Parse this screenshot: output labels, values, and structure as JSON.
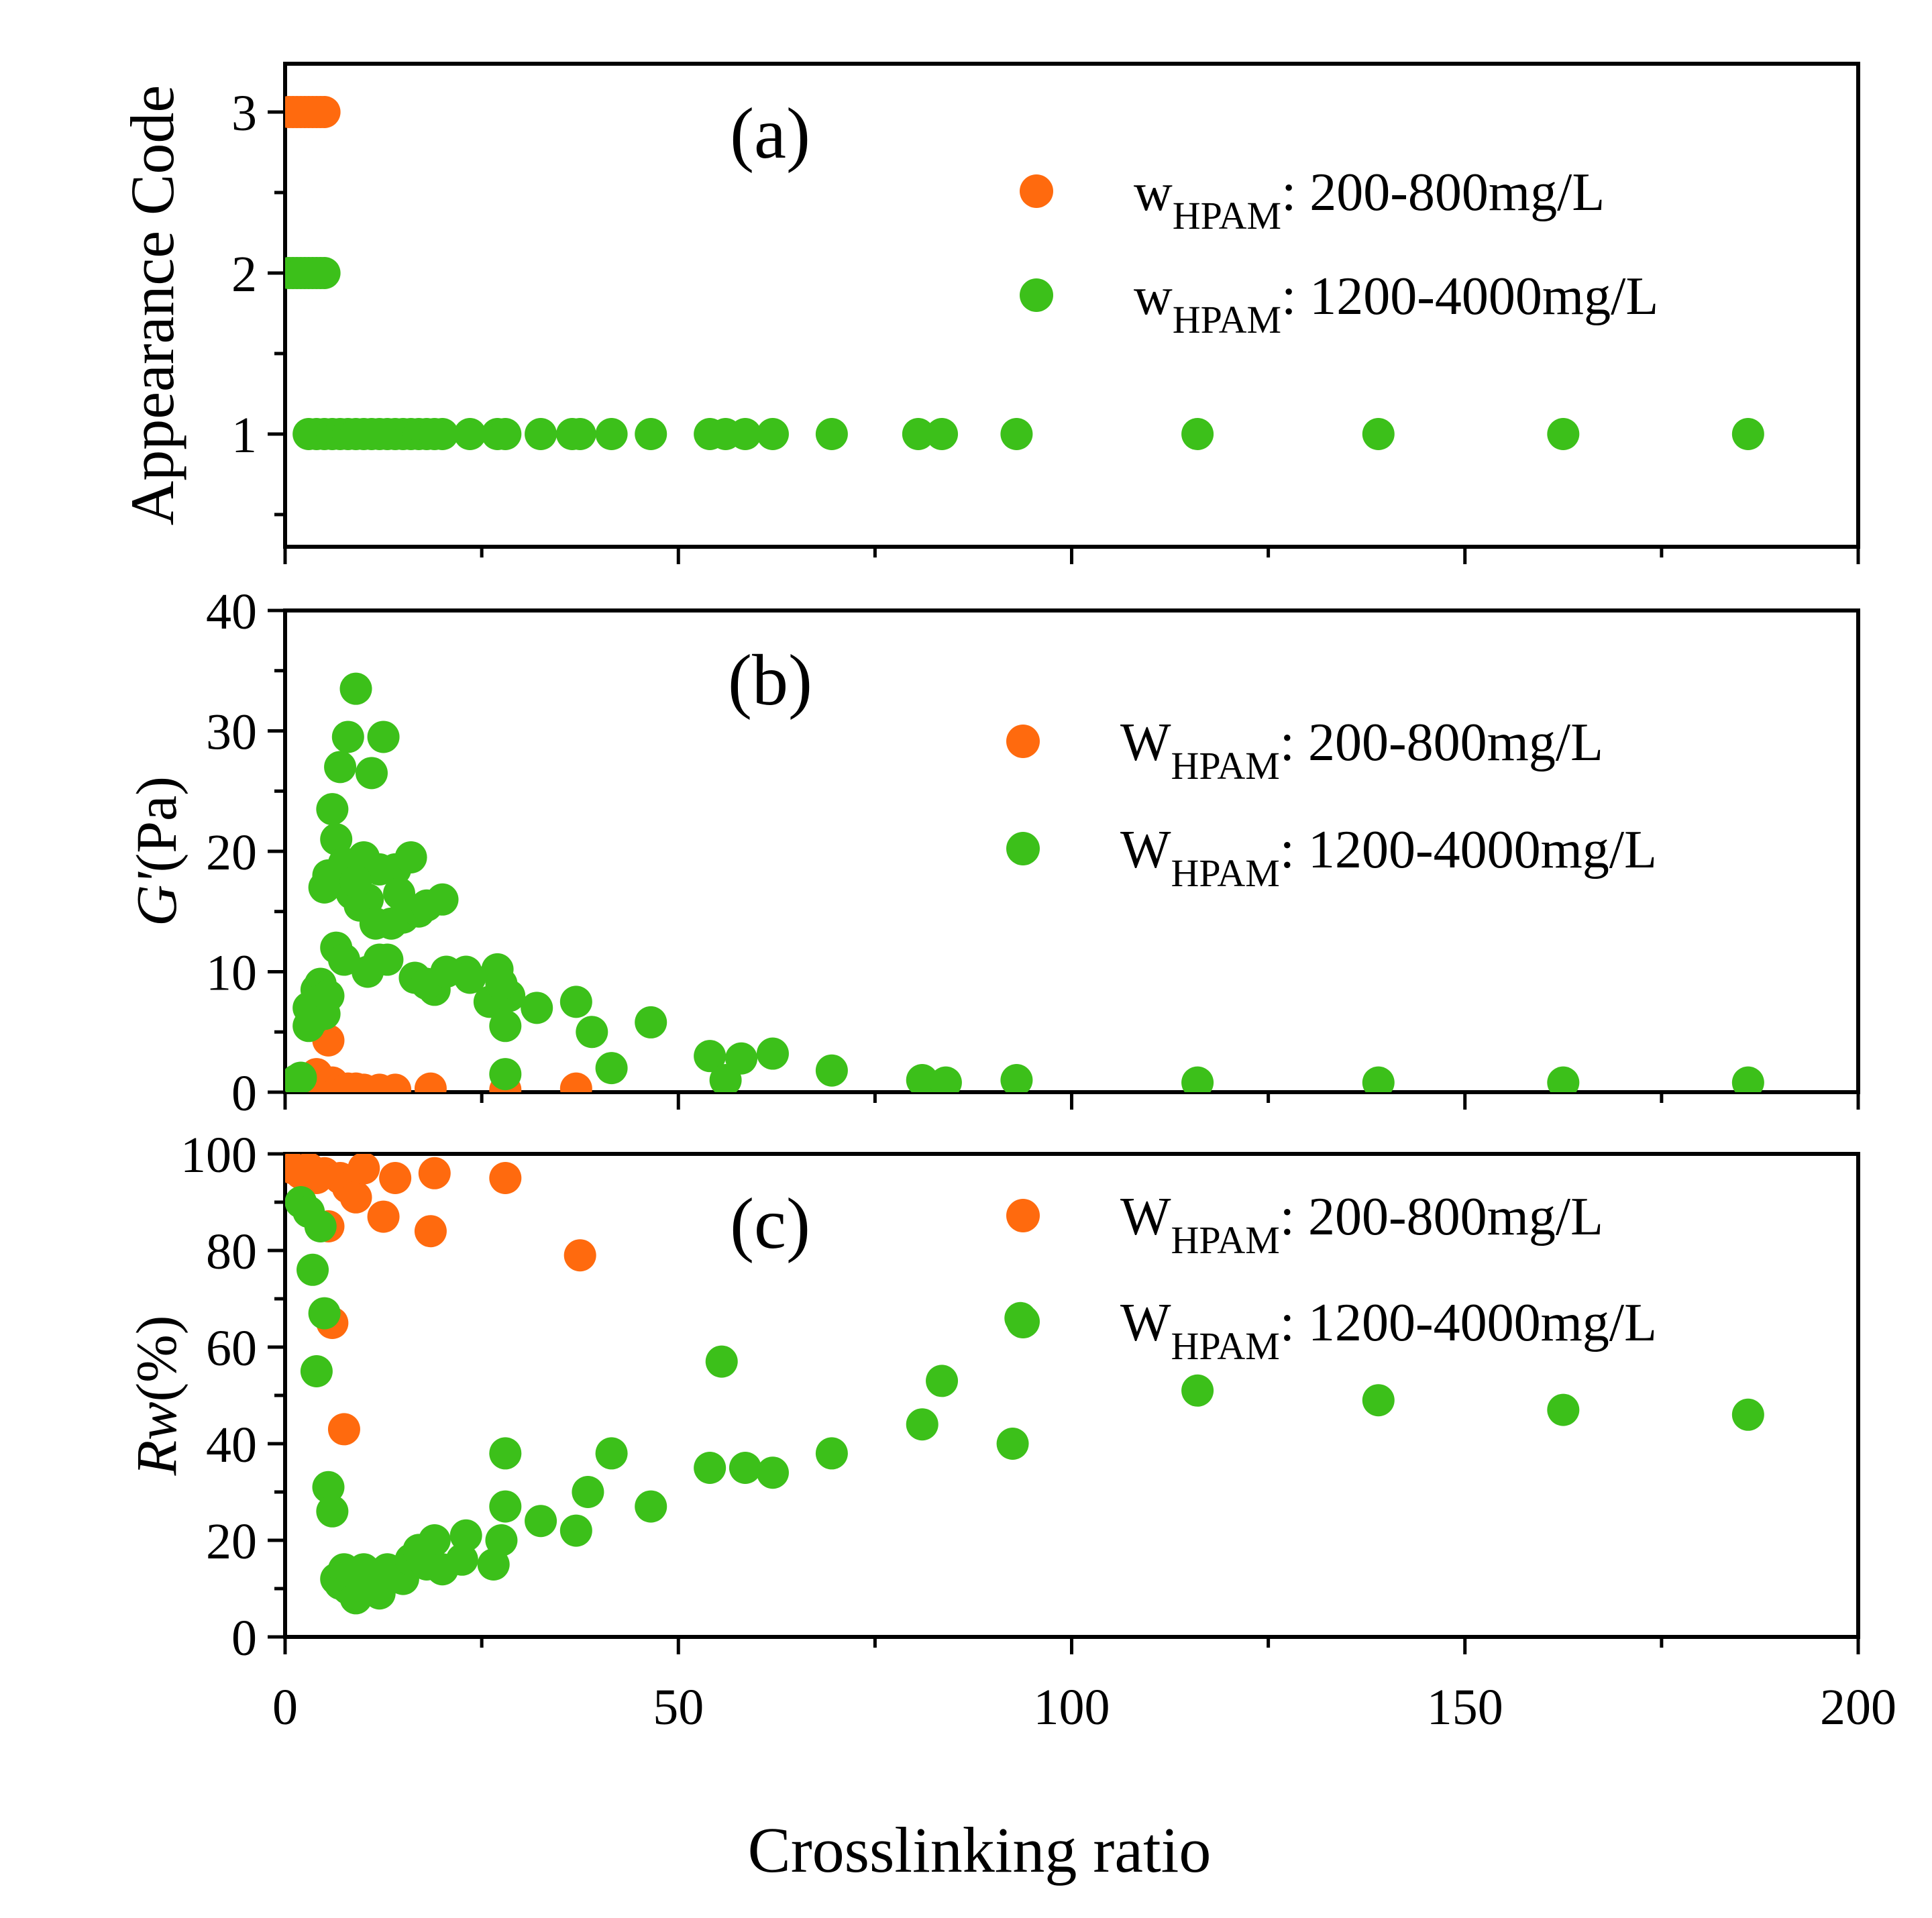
{
  "figure": {
    "xlabel": "Crosslinking ratio",
    "xlim": [
      0,
      200
    ],
    "xticks": [
      0,
      50,
      100,
      150,
      200
    ],
    "colors": {
      "orange": "#ff6a0e",
      "green": "#3cc01a"
    }
  },
  "chart_data": [
    {
      "type": "scatter",
      "panel_label": "(a)",
      "ylabel": "Appearance Code",
      "ylim": [
        0.3,
        3.3
      ],
      "yticks": [
        1,
        2,
        3
      ],
      "legend": [
        {
          "prefix": "w",
          "sub": "HPAM",
          "text": ": 200-800mg/L",
          "color": "orange"
        },
        {
          "prefix": "w",
          "sub": "HPAM",
          "text": ": 1200-4000mg/L",
          "color": "green"
        }
      ],
      "series": [
        {
          "name": "wHPAM: 200-800mg/L",
          "color": "orange",
          "x": [
            0.5,
            1,
            1.5,
            2,
            2.5,
            3,
            3.5,
            4,
            4.5,
            5
          ],
          "y": [
            3,
            3,
            3,
            3,
            3,
            3,
            3,
            3,
            3,
            3
          ]
        },
        {
          "name": "wHPAM: 1200-4000mg/L",
          "color": "green",
          "x": [
            0.5,
            1,
            1.5,
            2,
            2.5,
            3,
            3.5,
            4,
            4.5,
            5,
            3,
            4,
            5,
            6,
            7,
            8,
            9,
            10,
            11,
            12,
            13,
            14,
            15,
            16,
            17,
            18,
            19,
            20,
            23.5,
            27,
            28,
            32.5,
            36.5,
            37.5,
            41.5,
            46.5,
            54,
            56,
            58.5,
            62,
            69.5,
            80.5,
            83.5,
            93,
            116,
            139,
            162.5,
            186
          ],
          "y": [
            2,
            2,
            2,
            2,
            2,
            2,
            2,
            2,
            2,
            2,
            1,
            1,
            1,
            1,
            1,
            1,
            1,
            1,
            1,
            1,
            1,
            1,
            1,
            1,
            1,
            1,
            1,
            1,
            1,
            1,
            1,
            1,
            1,
            1,
            1,
            1,
            1,
            1,
            1,
            1,
            1,
            1,
            1,
            1,
            1,
            1,
            1,
            1
          ]
        }
      ]
    },
    {
      "type": "scatter",
      "panel_label": "(b)",
      "ylabel": "G'(Pa)",
      "ylim": [
        0,
        40
      ],
      "yticks": [
        0,
        10,
        20,
        30,
        40
      ],
      "legend": [
        {
          "prefix": "W",
          "sub": "HPAM",
          "text": ": 200-800mg/L",
          "color": "orange"
        },
        {
          "prefix": "W",
          "sub": "HPAM",
          "text": ": 1200-4000mg/L",
          "color": "green"
        }
      ],
      "series": [
        {
          "name": "WHPAM: 200-800mg/L",
          "color": "orange",
          "x": [
            2,
            3,
            4,
            5,
            5.5,
            6,
            7,
            8,
            9,
            10,
            12,
            14,
            18.5,
            28,
            37
          ],
          "y": [
            0.5,
            0.3,
            1.5,
            0.5,
            4.3,
            0.8,
            0.3,
            0.3,
            0.3,
            0.2,
            0.2,
            0.2,
            0.3,
            0.2,
            0.3
          ]
        },
        {
          "name": "WHPAM: 1200-4000mg/L",
          "color": "green",
          "x": [
            1.5,
            2,
            3,
            3.5,
            4,
            4.5,
            5,
            5.5,
            6,
            6.5,
            7,
            7.5,
            8,
            8.5,
            9,
            9.5,
            10,
            10.5,
            11,
            12,
            12.5,
            13,
            14,
            15,
            16,
            17,
            18,
            19,
            20,
            23,
            26,
            27,
            28,
            28.5,
            32,
            37,
            39,
            41.5,
            46.5,
            54,
            56,
            58,
            62,
            69.5,
            81,
            84,
            93,
            116,
            139,
            162.5,
            186,
            3,
            4,
            5,
            5.5,
            6.5,
            7.5,
            9,
            10.5,
            11.5,
            12,
            13.5,
            14.5,
            16.5,
            18,
            20.5,
            23.5,
            27.5,
            28
          ],
          "y": [
            1,
            1.2,
            7,
            6,
            8.5,
            9,
            6.5,
            18,
            23.5,
            21,
            27,
            19,
            29.5,
            16.5,
            33.5,
            15.5,
            19.5,
            16,
            26.5,
            18.5,
            29.5,
            11,
            18.5,
            14.5,
            19.5,
            15,
            15.5,
            8.5,
            16,
            10,
            7.5,
            10.2,
            5.5,
            8,
            7,
            7.5,
            5,
            2,
            5.8,
            3,
            1,
            2.8,
            3.2,
            1.8,
            1,
            0.8,
            1,
            0.8,
            0.8,
            0.8,
            0.8,
            5.5,
            7.5,
            17,
            8,
            12,
            11,
            17.5,
            10,
            14,
            11,
            14,
            16.5,
            9.5,
            9,
            10,
            9.5,
            9,
            1.5
          ]
        }
      ]
    },
    {
      "type": "scatter",
      "panel_label": "(c)",
      "ylabel": "Rw(%)",
      "ylim": [
        0,
        100
      ],
      "yticks": [
        0,
        20,
        40,
        60,
        80,
        100
      ],
      "legend": [
        {
          "prefix": "W",
          "sub": "HPAM",
          "text": ": 200-800mg/L",
          "color": "orange"
        },
        {
          "prefix": "W",
          "sub": "HPAM",
          "text": ": 1200-4000mg/L",
          "color": "green"
        }
      ],
      "series": [
        {
          "name": "WHPAM: 200-800mg/L",
          "color": "orange",
          "x": [
            1,
            2,
            3,
            4,
            5,
            5.5,
            6,
            7,
            7.5,
            8,
            9,
            10,
            12.5,
            14,
            18.5,
            19,
            28,
            37.5
          ],
          "y": [
            97,
            96,
            97,
            95,
            96,
            85,
            65,
            95,
            43,
            93,
            91,
            97,
            87,
            95,
            84,
            96,
            95,
            79
          ]
        },
        {
          "name": "WHPAM: 1200-4000mg/L",
          "color": "green",
          "x": [
            2,
            3,
            3.5,
            4,
            4.5,
            5,
            5.5,
            6,
            6.5,
            7,
            7.5,
            8,
            8.5,
            9,
            9.5,
            10,
            10.5,
            11,
            12,
            13,
            14,
            15,
            16,
            17,
            18,
            19,
            20,
            22.5,
            23,
            26.5,
            27.5,
            28,
            28,
            32.5,
            37,
            38.5,
            41.5,
            46.5,
            54,
            55.5,
            58.5,
            62,
            69.5,
            81,
            83.5,
            92.5,
            93.5,
            116,
            139,
            162.5,
            186
          ],
          "y": [
            90,
            88,
            76,
            55,
            85,
            67,
            31,
            26,
            12,
            11,
            14,
            10,
            13,
            8,
            12,
            14,
            10,
            13,
            9,
            14,
            13,
            12,
            16,
            18,
            15,
            20,
            14,
            16,
            21,
            15,
            20,
            27,
            38,
            24,
            22,
            30,
            38,
            27,
            35,
            57,
            35,
            34,
            38,
            44,
            53,
            40,
            66,
            51,
            49,
            47,
            46
          ]
        }
      ]
    }
  ]
}
